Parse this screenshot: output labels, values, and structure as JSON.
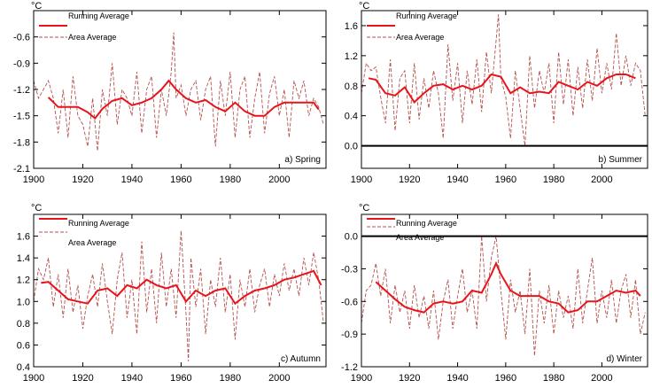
{
  "figure": {
    "unit_label": "°C",
    "legend": {
      "running": "Running Average",
      "area": "Area Average",
      "placement": "top-left"
    },
    "colors": {
      "running": "#e8141b",
      "area": "#b5514d",
      "axis": "#000000"
    }
  },
  "chart_data": [
    {
      "type": "line",
      "title": "a) Spring",
      "ylabel": "°C",
      "xlim": [
        1900,
        2019
      ],
      "ylim": [
        -2.1,
        -0.3
      ],
      "yticks": [
        -2.1,
        -1.8,
        -1.5,
        -1.2,
        -0.9,
        -0.6
      ],
      "ytick_labels": [
        "-2.1",
        "-1.8",
        "-1.5",
        "-1.2",
        "-0.9",
        "-0.6"
      ],
      "xticks": [
        1900,
        1920,
        1940,
        1960,
        1980,
        2000
      ],
      "xtick_labels": [
        "1900",
        "1920",
        "1940",
        "1960",
        "1980",
        "2000"
      ],
      "zero_line": false,
      "running_avg": {
        "x": [
          1906,
          1910,
          1914,
          1918,
          1922,
          1925,
          1928,
          1932,
          1936,
          1940,
          1944,
          1948,
          1952,
          1955,
          1958,
          1962,
          1966,
          1970,
          1974,
          1978,
          1982,
          1986,
          1990,
          1994,
          1998,
          2002,
          2006,
          2010,
          2014,
          2016
        ],
        "y": [
          -1.29,
          -1.4,
          -1.4,
          -1.4,
          -1.46,
          -1.53,
          -1.42,
          -1.33,
          -1.3,
          -1.38,
          -1.35,
          -1.3,
          -1.2,
          -1.1,
          -1.2,
          -1.3,
          -1.35,
          -1.32,
          -1.4,
          -1.45,
          -1.35,
          -1.45,
          -1.5,
          -1.5,
          -1.4,
          -1.35,
          -1.35,
          -1.35,
          -1.35,
          -1.43
        ]
      },
      "area_avg": {
        "x": [
          1900,
          1902,
          1904,
          1906,
          1908,
          1910,
          1912,
          1914,
          1916,
          1918,
          1920,
          1922,
          1924,
          1926,
          1928,
          1930,
          1932,
          1934,
          1936,
          1938,
          1940,
          1942,
          1944,
          1946,
          1948,
          1950,
          1952,
          1954,
          1956,
          1957,
          1958,
          1960,
          1962,
          1964,
          1966,
          1968,
          1970,
          1972,
          1974,
          1976,
          1978,
          1980,
          1982,
          1984,
          1986,
          1988,
          1990,
          1992,
          1994,
          1996,
          1998,
          2000,
          2002,
          2004,
          2006,
          2008,
          2010,
          2012,
          2014,
          2016,
          2018
        ],
        "y": [
          -1.1,
          -1.3,
          -1.2,
          -1.1,
          -1.3,
          -1.7,
          -1.2,
          -1.75,
          -1.05,
          -1.5,
          -1.6,
          -1.85,
          -1.3,
          -1.9,
          -1.2,
          -1.5,
          -0.9,
          -1.6,
          -1.2,
          -1.3,
          -1.5,
          -1.0,
          -1.7,
          -1.2,
          -1.05,
          -1.75,
          -1.2,
          -1.5,
          -1.0,
          -0.55,
          -1.3,
          -1.15,
          -1.5,
          -1.2,
          -1.1,
          -1.55,
          -1.2,
          -1.05,
          -1.85,
          -1.1,
          -1.5,
          -1.0,
          -1.75,
          -1.2,
          -1.05,
          -1.75,
          -1.3,
          -1.0,
          -1.7,
          -1.25,
          -1.05,
          -1.5,
          -1.2,
          -1.75,
          -1.1,
          -1.3,
          -1.1,
          -1.5,
          -1.3,
          -1.4,
          -1.6
        ]
      }
    },
    {
      "type": "line",
      "title": "b) Summer",
      "ylabel": "°C",
      "xlim": [
        1900,
        2019
      ],
      "ylim": [
        -0.3,
        1.8
      ],
      "yticks": [
        0.0,
        0.4,
        0.8,
        1.2,
        1.6
      ],
      "ytick_labels": [
        "0.0",
        "0.4",
        "0.8",
        "1.2",
        "1.6"
      ],
      "xticks": [
        1900,
        1920,
        1940,
        1960,
        1980,
        2000
      ],
      "xtick_labels": [
        "1900",
        "1920",
        "1940",
        "1960",
        "1980",
        "2000"
      ],
      "zero_line": true,
      "running_avg": {
        "x": [
          1903,
          1906,
          1910,
          1914,
          1918,
          1922,
          1926,
          1930,
          1934,
          1938,
          1942,
          1946,
          1950,
          1954,
          1958,
          1962,
          1966,
          1970,
          1974,
          1978,
          1982,
          1986,
          1990,
          1994,
          1998,
          2002,
          2006,
          2010,
          2014
        ],
        "y": [
          0.9,
          0.88,
          0.7,
          0.67,
          0.78,
          0.58,
          0.7,
          0.8,
          0.82,
          0.75,
          0.8,
          0.75,
          0.8,
          0.95,
          0.92,
          0.7,
          0.78,
          0.7,
          0.72,
          0.7,
          0.85,
          0.8,
          0.75,
          0.85,
          0.8,
          0.9,
          0.95,
          0.95,
          0.9
        ]
      },
      "area_avg": {
        "x": [
          1900,
          1902,
          1904,
          1906,
          1908,
          1910,
          1912,
          1914,
          1916,
          1918,
          1920,
          1922,
          1924,
          1926,
          1928,
          1930,
          1932,
          1934,
          1936,
          1938,
          1940,
          1942,
          1944,
          1946,
          1948,
          1950,
          1952,
          1954,
          1956,
          1957,
          1958,
          1960,
          1962,
          1964,
          1966,
          1968,
          1970,
          1972,
          1974,
          1976,
          1978,
          1980,
          1982,
          1984,
          1986,
          1988,
          1990,
          1992,
          1994,
          1996,
          1998,
          2000,
          2002,
          2004,
          2006,
          2008,
          2010,
          2012,
          2014,
          2016,
          2018
        ],
        "y": [
          0.7,
          1.1,
          1.0,
          1.05,
          0.65,
          0.3,
          1.15,
          0.2,
          0.9,
          1.0,
          0.3,
          1.1,
          0.35,
          0.9,
          0.5,
          1.0,
          0.7,
          0.1,
          1.35,
          0.6,
          1.1,
          0.3,
          1.0,
          0.55,
          1.15,
          0.45,
          1.25,
          0.7,
          1.4,
          1.75,
          0.9,
          0.65,
          0.1,
          1.0,
          0.5,
          0.0,
          1.2,
          0.5,
          1.0,
          0.7,
          1.1,
          0.3,
          1.25,
          0.55,
          1.15,
          0.4,
          1.05,
          0.5,
          1.15,
          0.6,
          1.3,
          0.7,
          1.1,
          0.75,
          1.5,
          0.8,
          1.2,
          0.8,
          1.1,
          1.0,
          0.4
        ]
      }
    },
    {
      "type": "line",
      "title": "c) Autumn",
      "ylabel": "°C",
      "xlim": [
        1900,
        2019
      ],
      "ylim": [
        0.4,
        1.8
      ],
      "yticks": [
        0.4,
        0.6,
        0.8,
        1.0,
        1.2,
        1.4,
        1.6
      ],
      "ytick_labels": [
        "0.4",
        "0.6",
        "0.8",
        "1.0",
        "1.2",
        "1.4",
        "1.6"
      ],
      "xticks": [
        1900,
        1920,
        1940,
        1960,
        1980,
        2000
      ],
      "xtick_labels": [
        "1900",
        "1920",
        "1940",
        "1960",
        "1980",
        "2000"
      ],
      "zero_line": false,
      "running_avg": {
        "x": [
          1903,
          1906,
          1910,
          1914,
          1918,
          1922,
          1926,
          1930,
          1934,
          1938,
          1942,
          1946,
          1950,
          1954,
          1958,
          1962,
          1966,
          1970,
          1974,
          1978,
          1982,
          1986,
          1990,
          1994,
          1998,
          2002,
          2006,
          2010,
          2014,
          2017
        ],
        "y": [
          1.17,
          1.18,
          1.1,
          1.02,
          1.0,
          0.98,
          1.1,
          1.12,
          1.05,
          1.15,
          1.12,
          1.2,
          1.15,
          1.12,
          1.15,
          1.0,
          1.1,
          1.05,
          1.1,
          1.12,
          0.98,
          1.05,
          1.1,
          1.12,
          1.15,
          1.2,
          1.22,
          1.25,
          1.28,
          1.15
        ]
      },
      "area_avg": {
        "x": [
          1900,
          1902,
          1904,
          1906,
          1908,
          1910,
          1912,
          1914,
          1916,
          1918,
          1920,
          1922,
          1924,
          1926,
          1928,
          1930,
          1932,
          1934,
          1936,
          1938,
          1940,
          1942,
          1944,
          1946,
          1948,
          1950,
          1952,
          1954,
          1956,
          1958,
          1960,
          1962,
          1963,
          1964,
          1966,
          1968,
          1970,
          1972,
          1974,
          1976,
          1978,
          1980,
          1982,
          1984,
          1986,
          1988,
          1990,
          1992,
          1994,
          1996,
          1998,
          2000,
          2002,
          2004,
          2006,
          2008,
          2010,
          2012,
          2014,
          2016,
          2018
        ],
        "y": [
          1.0,
          1.3,
          1.2,
          1.4,
          0.95,
          1.25,
          0.85,
          1.3,
          0.9,
          1.15,
          0.75,
          1.05,
          1.25,
          0.95,
          1.35,
          1.0,
          0.7,
          1.2,
          1.45,
          0.85,
          1.2,
          0.7,
          1.55,
          0.9,
          1.3,
          0.8,
          1.45,
          0.95,
          1.3,
          0.85,
          1.65,
          0.9,
          0.45,
          1.4,
          0.95,
          1.3,
          0.7,
          1.2,
          0.95,
          1.4,
          0.9,
          1.25,
          0.65,
          1.2,
          0.95,
          1.3,
          0.9,
          1.15,
          1.3,
          0.95,
          1.25,
          1.05,
          1.35,
          1.1,
          1.3,
          1.05,
          1.4,
          1.15,
          1.45,
          1.2,
          0.8
        ]
      }
    },
    {
      "type": "line",
      "title": "d) Winter",
      "ylabel": "°C",
      "xlim": [
        1900,
        2019
      ],
      "ylim": [
        -1.2,
        0.2
      ],
      "yticks": [
        -1.2,
        -0.9,
        -0.6,
        -0.3,
        0.0
      ],
      "ytick_labels": [
        "-1.2",
        "-0.9",
        "-0.6",
        "-0.3",
        "0.0"
      ],
      "xticks": [
        1900,
        1920,
        1940,
        1960,
        1980,
        2000
      ],
      "xtick_labels": [
        "1900",
        "1920",
        "1940",
        "1960",
        "1980",
        "2000"
      ],
      "zero_line": true,
      "running_avg": {
        "x": [
          1906,
          1910,
          1914,
          1918,
          1922,
          1926,
          1930,
          1934,
          1938,
          1942,
          1946,
          1950,
          1954,
          1956,
          1958,
          1962,
          1966,
          1970,
          1974,
          1978,
          1982,
          1986,
          1990,
          1994,
          1998,
          2002,
          2006,
          2010,
          2014,
          2016
        ],
        "y": [
          -0.42,
          -0.5,
          -0.58,
          -0.65,
          -0.68,
          -0.7,
          -0.62,
          -0.6,
          -0.62,
          -0.6,
          -0.5,
          -0.52,
          -0.35,
          -0.25,
          -0.35,
          -0.5,
          -0.55,
          -0.55,
          -0.55,
          -0.6,
          -0.62,
          -0.7,
          -0.68,
          -0.6,
          -0.6,
          -0.55,
          -0.5,
          -0.52,
          -0.5,
          -0.55
        ]
      },
      "area_avg": {
        "x": [
          1900,
          1902,
          1904,
          1906,
          1908,
          1910,
          1912,
          1914,
          1916,
          1918,
          1920,
          1922,
          1924,
          1926,
          1928,
          1930,
          1932,
          1934,
          1936,
          1938,
          1940,
          1942,
          1944,
          1946,
          1948,
          1950,
          1952,
          1954,
          1956,
          1958,
          1960,
          1962,
          1964,
          1966,
          1968,
          1970,
          1972,
          1974,
          1976,
          1978,
          1980,
          1982,
          1984,
          1986,
          1988,
          1990,
          1992,
          1994,
          1996,
          1998,
          2000,
          2002,
          2004,
          2006,
          2008,
          2010,
          2012,
          2014,
          2016,
          2018
        ],
        "y": [
          -0.8,
          -0.5,
          -0.45,
          -0.25,
          -0.55,
          -0.3,
          -0.8,
          -0.45,
          -0.7,
          -0.5,
          -0.85,
          -0.45,
          -0.75,
          -0.55,
          -0.85,
          -0.5,
          -0.95,
          -0.6,
          -0.4,
          -0.85,
          -0.55,
          -0.3,
          -0.7,
          -0.5,
          -0.85,
          0.0,
          -0.6,
          -0.2,
          0.0,
          -0.5,
          -0.95,
          -0.4,
          -0.7,
          -0.5,
          -0.9,
          -0.3,
          -1.1,
          -0.5,
          -0.8,
          -0.45,
          -0.9,
          -0.5,
          -0.75,
          -0.55,
          -0.85,
          -0.3,
          -0.8,
          -0.5,
          -0.2,
          -0.8,
          -0.5,
          -0.75,
          -0.4,
          -0.8,
          -0.5,
          -0.35,
          -0.75,
          -0.4,
          -0.9,
          -0.7
        ]
      }
    }
  ]
}
